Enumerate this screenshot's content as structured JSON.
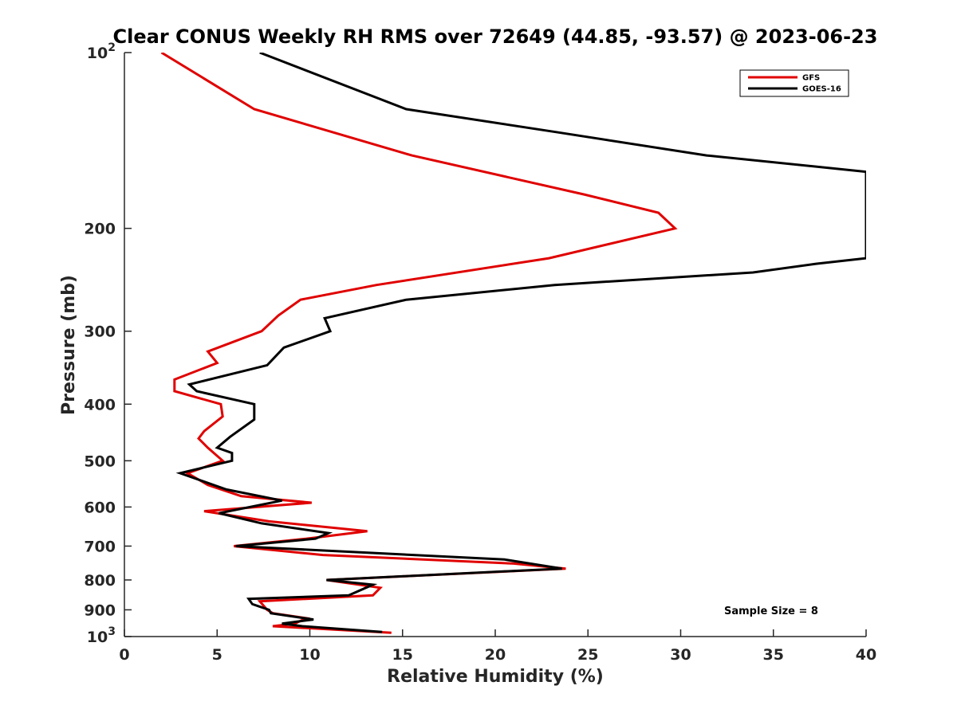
{
  "chart_data": {
    "type": "line",
    "title": "Clear CONUS Weekly RH RMS over 72649 (44.85, -93.57) @ 2023-06-23",
    "xlabel": "Relative Humidity (%)",
    "ylabel": "Pressure (mb)",
    "xlim": [
      0,
      40
    ],
    "ylim": [
      1000,
      100
    ],
    "yscale": "log",
    "y_reversed": true,
    "xticks": [
      0,
      5,
      10,
      15,
      20,
      25,
      30,
      35,
      40
    ],
    "yticks": [
      {
        "value": 100,
        "base": "10",
        "exp": "2"
      },
      {
        "value": 200,
        "label": "200"
      },
      {
        "value": 300,
        "label": "300"
      },
      {
        "value": 400,
        "label": "400"
      },
      {
        "value": 500,
        "label": "500"
      },
      {
        "value": 600,
        "label": "600"
      },
      {
        "value": 700,
        "label": "700"
      },
      {
        "value": 800,
        "label": "800"
      },
      {
        "value": 900,
        "label": "900"
      },
      {
        "value": 1000,
        "base": "10",
        "exp": "3"
      }
    ],
    "grid": false,
    "legend_position": "top-right",
    "annotation": "Sample Size = 8",
    "series": [
      {
        "name": "GFS",
        "color": "#e00000",
        "points": [
          [
            2.0,
            100
          ],
          [
            7.0,
            125
          ],
          [
            15.5,
            150
          ],
          [
            24.8,
            175
          ],
          [
            28.8,
            188
          ],
          [
            29.7,
            200
          ],
          [
            22.9,
            225
          ],
          [
            13.6,
            250
          ],
          [
            9.5,
            265
          ],
          [
            8.3,
            282
          ],
          [
            7.4,
            300
          ],
          [
            4.5,
            325
          ],
          [
            5.0,
            340
          ],
          [
            2.7,
            363
          ],
          [
            2.7,
            380
          ],
          [
            5.2,
            400
          ],
          [
            5.3,
            420
          ],
          [
            4.3,
            445
          ],
          [
            4.0,
            458
          ],
          [
            4.5,
            475
          ],
          [
            5.3,
            500
          ],
          [
            3.4,
            525
          ],
          [
            4.5,
            550
          ],
          [
            6.3,
            575
          ],
          [
            10.1,
            590
          ],
          [
            4.3,
            610
          ],
          [
            7.8,
            635
          ],
          [
            13.1,
            660
          ],
          [
            9.8,
            680
          ],
          [
            5.9,
            700
          ],
          [
            10.7,
            725
          ],
          [
            21.0,
            750
          ],
          [
            23.8,
            765
          ],
          [
            10.9,
            800
          ],
          [
            13.8,
            825
          ],
          [
            13.4,
            850
          ],
          [
            7.3,
            870
          ],
          [
            7.7,
            900
          ],
          [
            8.0,
            912
          ],
          [
            9.8,
            930
          ],
          [
            9.2,
            950
          ],
          [
            8.0,
            960
          ],
          [
            14.4,
            985
          ]
        ]
      },
      {
        "name": "GOES-16",
        "color": "#000000",
        "points": [
          [
            7.3,
            100
          ],
          [
            15.2,
            125
          ],
          [
            23.4,
            137
          ],
          [
            31.4,
            150
          ],
          [
            40.0,
            160
          ],
          [
            40.0,
            225
          ],
          [
            37.3,
            230
          ],
          [
            33.9,
            238
          ],
          [
            23.2,
            250
          ],
          [
            15.2,
            265
          ],
          [
            10.8,
            285
          ],
          [
            11.1,
            300
          ],
          [
            8.6,
            320
          ],
          [
            7.7,
            343
          ],
          [
            3.5,
            370
          ],
          [
            3.9,
            380
          ],
          [
            7.0,
            400
          ],
          [
            7.0,
            425
          ],
          [
            5.7,
            455
          ],
          [
            5.0,
            475
          ],
          [
            5.8,
            485
          ],
          [
            5.8,
            500
          ],
          [
            3.0,
            525
          ],
          [
            5.5,
            560
          ],
          [
            8.5,
            585
          ],
          [
            5.1,
            615
          ],
          [
            7.4,
            640
          ],
          [
            11.0,
            665
          ],
          [
            10.3,
            680
          ],
          [
            6.0,
            700
          ],
          [
            20.5,
            738
          ],
          [
            23.6,
            765
          ],
          [
            10.9,
            800
          ],
          [
            13.4,
            815
          ],
          [
            12.1,
            850
          ],
          [
            6.7,
            862
          ],
          [
            6.9,
            880
          ],
          [
            7.8,
            900
          ],
          [
            7.9,
            912
          ],
          [
            10.2,
            935
          ],
          [
            8.5,
            950
          ],
          [
            9.6,
            960
          ],
          [
            13.9,
            982
          ]
        ]
      }
    ]
  }
}
